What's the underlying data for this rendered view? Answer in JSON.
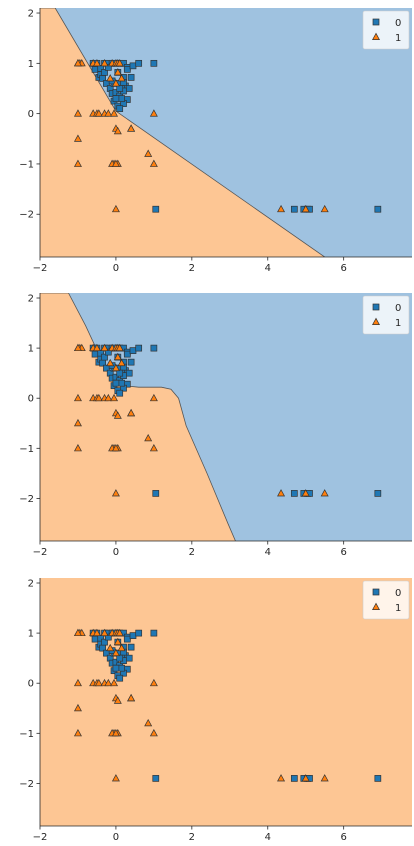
{
  "colors": {
    "class0": "#1f77b4",
    "class1": "#ff7f0e",
    "region0": "#9fc2e0",
    "region1": "#fdc694",
    "edge": "#333333",
    "axis": "#262626"
  },
  "chart_data": [
    {
      "type": "scatter",
      "title": "",
      "xlabel": "",
      "ylabel": "",
      "xlim": [
        -2,
        7.8
      ],
      "ylim": [
        -2.85,
        2.1
      ],
      "xticks": [
        -2,
        0,
        2,
        4,
        6
      ],
      "yticks": [
        2,
        1,
        0,
        -1,
        -2
      ],
      "grid": false,
      "legend": {
        "position": "top-right",
        "entries": [
          "0",
          "1"
        ]
      },
      "decision_boundary": [
        [
          -2.0,
          2.1
        ],
        [
          -1.6,
          2.1
        ],
        [
          0.0,
          0.05
        ],
        [
          5.5,
          -2.85
        ]
      ],
      "region_class_above": "0",
      "region_class_below": "1",
      "series": [
        {
          "name": "0",
          "marker": "square",
          "x": [
            -0.55,
            -0.6,
            -0.5,
            -0.45,
            -0.4,
            -0.3,
            -0.2,
            -0.1,
            0,
            0.1,
            0.2,
            0.3,
            -0.4,
            -0.35,
            -0.3,
            -0.2,
            0.05,
            0.2,
            0.3,
            0.4,
            0.45,
            -0.25,
            -0.15,
            -0.05,
            0.1,
            0.25,
            0.35,
            -0.1,
            0,
            0.1,
            0.15,
            0.2,
            0.3,
            -0.05,
            0.05,
            0.2,
            0.1,
            0.15,
            0,
            0.6,
            1,
            -0.1,
            0.2,
            0.1,
            1.05,
            4.7,
            4.95,
            5.05,
            5.1,
            6.9
          ],
          "y": [
            0.88,
            1,
            1,
            0.72,
            0.78,
            1,
            1,
            1,
            1,
            1,
            1,
            0.92,
            0.9,
            0.7,
            0.82,
            0.92,
            0.82,
            0.72,
            0.88,
            0.72,
            0.95,
            0.6,
            0.5,
            0.6,
            0.6,
            0.55,
            0.5,
            0.4,
            0.42,
            0.35,
            0.5,
            0.45,
            0.28,
            0.25,
            0.15,
            0.2,
            0.1,
            0.3,
            0.3,
            1,
            1,
            0.65,
            0.62,
            0.5,
            -1.9,
            -1.9,
            -1.9,
            -1.9,
            -1.9,
            -1.9
          ]
        },
        {
          "name": "1",
          "marker": "triangle",
          "x": [
            -1,
            -0.95,
            -0.9,
            -1,
            -0.6,
            -0.5,
            -0.3,
            -0.1,
            0,
            0.05,
            0.1,
            0.15,
            -0.15,
            0,
            0.05,
            -1,
            -0.6,
            -0.5,
            -0.45,
            -0.3,
            -0.2,
            -0.05,
            0,
            0.05,
            0.4,
            1,
            -1,
            -0.05,
            0.05,
            0.4,
            0.85,
            -1,
            -0.1,
            0,
            1,
            0,
            4.35,
            5.0,
            5.5
          ],
          "y": [
            1,
            1,
            1,
            1,
            1,
            1,
            1,
            1,
            1,
            1,
            1,
            0.7,
            0.7,
            0.6,
            0.82,
            0,
            0,
            0,
            0,
            0,
            0,
            0,
            -0.3,
            -0.35,
            -0.3,
            0,
            -0.5,
            -1,
            -1,
            -0.3,
            -0.8,
            -1,
            -1,
            -1,
            -1,
            -1.9,
            -1.9,
            -1.9,
            -1.9
          ]
        }
      ]
    },
    {
      "type": "scatter",
      "title": "",
      "xlabel": "",
      "ylabel": "",
      "xlim": [
        -2,
        7.8
      ],
      "ylim": [
        -2.85,
        2.1
      ],
      "xticks": [
        -2,
        0,
        2,
        4,
        6
      ],
      "yticks": [
        2,
        1,
        0,
        -1,
        -2
      ],
      "grid": false,
      "legend": {
        "position": "top-right",
        "entries": [
          "0",
          "1"
        ]
      },
      "decision_boundary": [
        [
          -2.0,
          2.1
        ],
        [
          -1.25,
          2.1
        ],
        [
          -0.8,
          1.45
        ],
        [
          -0.4,
          0.8
        ],
        [
          0,
          0.38
        ],
        [
          0.2,
          0.25
        ],
        [
          0.6,
          0.22
        ],
        [
          1.2,
          0.22
        ],
        [
          1.45,
          0.18
        ],
        [
          1.65,
          0.0
        ],
        [
          1.85,
          -0.55
        ],
        [
          2.4,
          -1.5
        ],
        [
          2.95,
          -2.5
        ],
        [
          3.15,
          -2.85
        ]
      ],
      "region_class_above": "0",
      "region_class_below": "1",
      "series": [
        {
          "name": "0",
          "marker": "square",
          "x": [
            -0.55,
            -0.6,
            -0.5,
            -0.45,
            -0.4,
            -0.3,
            -0.2,
            -0.1,
            0,
            0.1,
            0.2,
            0.3,
            -0.4,
            -0.35,
            -0.3,
            -0.2,
            0.05,
            0.2,
            0.3,
            0.4,
            0.45,
            -0.25,
            -0.15,
            -0.05,
            0.1,
            0.25,
            0.35,
            -0.1,
            0,
            0.1,
            0.15,
            0.2,
            0.3,
            -0.05,
            0.05,
            0.2,
            0.1,
            0.15,
            0,
            0.6,
            1,
            -0.1,
            0.2,
            0.1,
            1.05,
            4.7,
            4.95,
            5.05,
            5.1,
            6.9
          ],
          "y": [
            0.88,
            1,
            1,
            0.72,
            0.78,
            1,
            1,
            1,
            1,
            1,
            1,
            0.92,
            0.9,
            0.7,
            0.82,
            0.92,
            0.82,
            0.72,
            0.88,
            0.72,
            0.95,
            0.6,
            0.5,
            0.6,
            0.6,
            0.55,
            0.5,
            0.4,
            0.42,
            0.35,
            0.5,
            0.45,
            0.28,
            0.25,
            0.15,
            0.2,
            0.1,
            0.3,
            0.3,
            1,
            1,
            0.65,
            0.62,
            0.5,
            -1.9,
            -1.9,
            -1.9,
            -1.9,
            -1.9,
            -1.9
          ]
        },
        {
          "name": "1",
          "marker": "triangle",
          "x": [
            -1,
            -0.95,
            -0.9,
            -1,
            -0.6,
            -0.5,
            -0.3,
            -0.1,
            0,
            0.05,
            0.1,
            0.15,
            -0.15,
            0,
            0.05,
            -1,
            -0.6,
            -0.5,
            -0.45,
            -0.3,
            -0.2,
            -0.05,
            0,
            0.05,
            0.4,
            1,
            -1,
            -0.05,
            0.05,
            0.4,
            0.85,
            -1,
            -0.1,
            0,
            1,
            0,
            4.35,
            5.0,
            5.5
          ],
          "y": [
            1,
            1,
            1,
            1,
            1,
            1,
            1,
            1,
            1,
            1,
            1,
            0.7,
            0.7,
            0.6,
            0.82,
            0,
            0,
            0,
            0,
            0,
            0,
            0,
            -0.3,
            -0.35,
            -0.3,
            0,
            -0.5,
            -1,
            -1,
            -0.3,
            -0.8,
            -1,
            -1,
            -1,
            -1,
            -1.9,
            -1.9,
            -1.9,
            -1.9
          ]
        }
      ]
    },
    {
      "type": "scatter",
      "title": "",
      "xlabel": "",
      "ylabel": "",
      "xlim": [
        -2,
        7.8
      ],
      "ylim": [
        -2.85,
        2.1
      ],
      "xticks": [
        -2,
        0,
        2,
        4,
        6
      ],
      "yticks": [
        2,
        1,
        0,
        -1,
        -2
      ],
      "grid": false,
      "legend": {
        "position": "top-right",
        "entries": [
          "0",
          "1"
        ]
      },
      "decision_boundary": [],
      "region_class_above": "1",
      "region_class_below": "1",
      "series": [
        {
          "name": "0",
          "marker": "square",
          "x": [
            -0.55,
            -0.6,
            -0.5,
            -0.45,
            -0.4,
            -0.3,
            -0.2,
            -0.1,
            0,
            0.1,
            0.2,
            0.3,
            -0.4,
            -0.35,
            -0.3,
            -0.2,
            0.05,
            0.2,
            0.3,
            0.4,
            0.45,
            -0.25,
            -0.15,
            -0.05,
            0.1,
            0.25,
            0.35,
            -0.1,
            0,
            0.1,
            0.15,
            0.2,
            0.3,
            -0.05,
            0.05,
            0.2,
            0.1,
            0.15,
            0,
            0.6,
            1,
            -0.1,
            0.2,
            0.1,
            1.05,
            4.7,
            4.95,
            5.05,
            5.1,
            6.9
          ],
          "y": [
            0.88,
            1,
            1,
            0.72,
            0.78,
            1,
            1,
            1,
            1,
            1,
            1,
            0.92,
            0.9,
            0.7,
            0.82,
            0.92,
            0.82,
            0.72,
            0.88,
            0.72,
            0.95,
            0.6,
            0.5,
            0.6,
            0.6,
            0.55,
            0.5,
            0.4,
            0.42,
            0.35,
            0.5,
            0.45,
            0.28,
            0.25,
            0.15,
            0.2,
            0.1,
            0.3,
            0.3,
            1,
            1,
            0.65,
            0.62,
            0.5,
            -1.9,
            -1.9,
            -1.9,
            -1.9,
            -1.9,
            -1.9
          ]
        },
        {
          "name": "1",
          "marker": "triangle",
          "x": [
            -1,
            -0.95,
            -0.9,
            -1,
            -0.6,
            -0.5,
            -0.3,
            -0.1,
            0,
            0.05,
            0.1,
            0.15,
            -0.15,
            0,
            0.05,
            -1,
            -0.6,
            -0.5,
            -0.45,
            -0.3,
            -0.2,
            -0.05,
            0,
            0.05,
            0.4,
            1,
            -1,
            -0.05,
            0.05,
            0.4,
            0.85,
            -1,
            -0.1,
            0,
            1,
            0,
            4.35,
            5.0,
            5.5
          ],
          "y": [
            1,
            1,
            1,
            1,
            1,
            1,
            1,
            1,
            1,
            1,
            1,
            0.7,
            0.7,
            0.6,
            0.82,
            0,
            0,
            0,
            0,
            0,
            0,
            0,
            -0.3,
            -0.35,
            -0.3,
            0,
            -0.5,
            -1,
            -1,
            -0.3,
            -0.8,
            -1,
            -1,
            -1,
            -1,
            -1.9,
            -1.9,
            -1.9,
            -1.9
          ]
        }
      ]
    }
  ]
}
